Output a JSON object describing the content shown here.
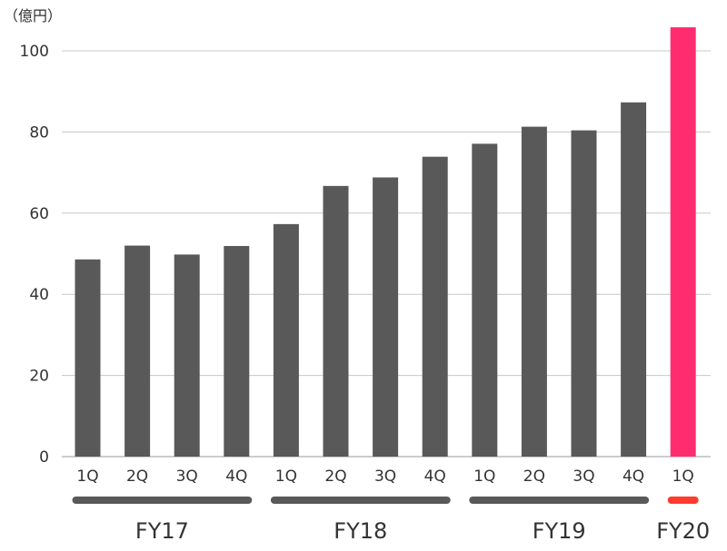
{
  "chart_data": {
    "type": "bar",
    "unit_label": "（億円）",
    "ylim": [
      0,
      110
    ],
    "yticks": [
      0,
      20,
      40,
      60,
      80,
      100
    ],
    "grid": true,
    "categories": [
      "1Q",
      "2Q",
      "3Q",
      "4Q",
      "1Q",
      "2Q",
      "3Q",
      "4Q",
      "1Q",
      "2Q",
      "3Q",
      "4Q",
      "1Q"
    ],
    "groups": [
      "FY17",
      "FY17",
      "FY17",
      "FY17",
      "FY18",
      "FY18",
      "FY18",
      "FY18",
      "FY19",
      "FY19",
      "FY19",
      "FY19",
      "FY20"
    ],
    "values": [
      48.6,
      52.0,
      49.8,
      51.9,
      57.3,
      66.7,
      68.8,
      73.9,
      77.1,
      81.3,
      80.4,
      87.3,
      105.8
    ],
    "fiscal_years": [
      {
        "label": "FY17",
        "start": 0,
        "end": 3,
        "color": "#595959"
      },
      {
        "label": "FY18",
        "start": 4,
        "end": 7,
        "color": "#595959"
      },
      {
        "label": "FY19",
        "start": 8,
        "end": 11,
        "color": "#595959"
      },
      {
        "label": "FY20",
        "start": 12,
        "end": 12,
        "color": "#ff3b2f"
      }
    ],
    "colors": {
      "bar": "#595959",
      "highlight": "#ff2d6f",
      "grid": "#c8c8c8"
    },
    "highlight_index": 12
  }
}
